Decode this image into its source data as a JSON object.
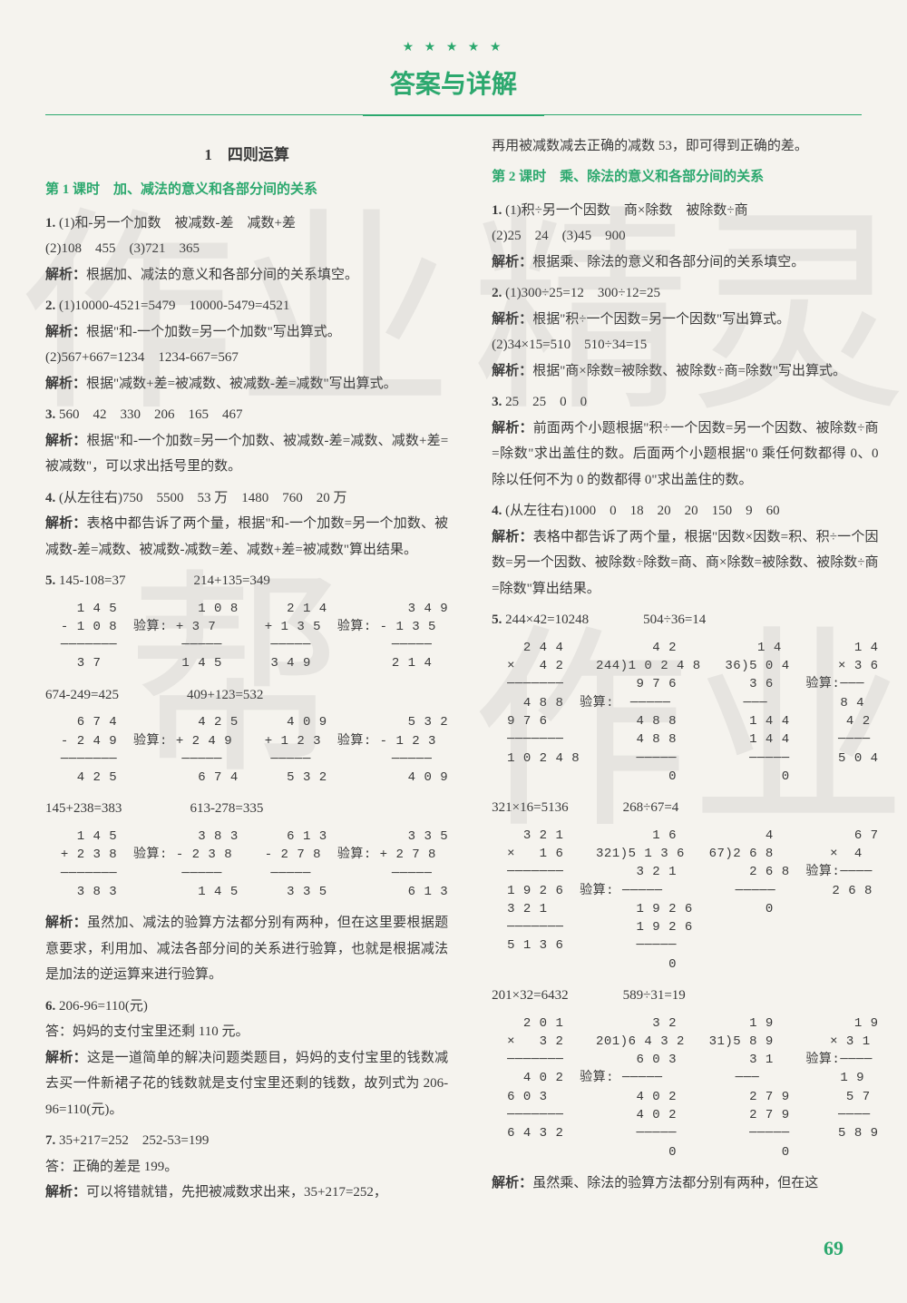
{
  "colors": {
    "accent": "#2ca86e",
    "text": "#3a3a3a",
    "bg": "#f5f3ee"
  },
  "header": {
    "stars": "★ ★ ★ ★ ★",
    "title": "答案与详解"
  },
  "watermark": {
    "c1": "作",
    "c2": "业",
    "c3": "帮",
    "c4": "精",
    "c5": "灵",
    "c6": "作",
    "c7": "业"
  },
  "page_number": "69",
  "left": {
    "section": "1　四则运算",
    "lesson": "第 1 课时　加、减法的意义和各部分间的关系",
    "q1": {
      "num": "1.",
      "a": "(1)和-另一个加数　被减数-差　减数+差",
      "b": "(2)108　455　(3)721　365",
      "ana": "解析：",
      "anat": "根据加、减法的意义和各部分间的关系填空。"
    },
    "q2": {
      "num": "2.",
      "a": "(1)10000-4521=5479　10000-5479=4521",
      "ana1": "解析：",
      "ana1t": "根据\"和-一个加数=另一个加数\"写出算式。",
      "b": "(2)567+667=1234　1234-667=567",
      "ana2": "解析：",
      "ana2t": "根据\"减数+差=被减数、被减数-差=减数\"写出算式。"
    },
    "q3": {
      "num": "3.",
      "a": "560　42　330　206　165　467",
      "ana": "解析：",
      "anat": "根据\"和-一个加数=另一个加数、被减数-差=减数、减数+差=被减数\"，可以求出括号里的数。"
    },
    "q4": {
      "num": "4.",
      "a": "(从左往右)750　5500　53 万　1480　760　20 万",
      "ana": "解析：",
      "anat": "表格中都告诉了两个量，根据\"和-一个加数=另一个加数、被减数-差=减数、被减数-减数=差、减数+差=被减数\"算出结果。"
    },
    "q5": {
      "num": "5.",
      "h1": "145-108=37",
      "h2": "214+135=349",
      "calc1": "   1 4 5          1 0 8      2 1 4          3 4 9\n - 1 0 8  验算: + 3 7      + 1 3 5  验算: - 1 3 5\n ───────        ─────      ─────          ─────\n   3 7          1 4 5      3 4 9          2 1 4",
      "h3": "674-249=425",
      "h4": "409+123=532",
      "calc2": "   6 7 4          4 2 5      4 0 9          5 3 2\n - 2 4 9  验算: + 2 4 9    + 1 2 3  验算: - 1 2 3\n ───────        ─────      ─────          ─────\n   4 2 5          6 7 4      5 3 2          4 0 9",
      "h5": "145+238=383",
      "h6": "613-278=335",
      "calc3": "   1 4 5          3 8 3      6 1 3          3 3 5\n + 2 3 8  验算: - 2 3 8    - 2 7 8  验算: + 2 7 8\n ───────        ─────      ─────          ─────\n   3 8 3          1 4 5      3 3 5          6 1 3",
      "ana": "解析：",
      "anat": "虽然加、减法的验算方法都分别有两种，但在这里要根据题意要求，利用加、减法各部分间的关系进行验算，也就是根据减法是加法的逆运算来进行验算。"
    },
    "q6": {
      "num": "6.",
      "a": "206-96=110(元)",
      "ans": "答：妈妈的支付宝里还剩 110 元。",
      "ana": "解析：",
      "anat": "这是一道简单的解决问题类题目，妈妈的支付宝里的钱数减去买一件新裙子花的钱数就是支付宝里还剩的钱数，故列式为 206-96=110(元)。"
    },
    "q7": {
      "num": "7.",
      "a": "35+217=252　252-53=199",
      "ans": "答：正确的差是 199。",
      "ana": "解析：",
      "anat": "可以将错就错，先把被减数求出来，35+217=252，"
    }
  },
  "right": {
    "cont": "再用被减数减去正确的减数 53，即可得到正确的差。",
    "lesson": "第 2 课时　乘、除法的意义和各部分间的关系",
    "q1": {
      "num": "1.",
      "a": "(1)积÷另一个因数　商×除数　被除数÷商",
      "b": "(2)25　24　(3)45　900",
      "ana": "解析：",
      "anat": "根据乘、除法的意义和各部分间的关系填空。"
    },
    "q2": {
      "num": "2.",
      "a": "(1)300÷25=12　300÷12=25",
      "ana1": "解析：",
      "ana1t": "根据\"积÷一个因数=另一个因数\"写出算式。",
      "b": "(2)34×15=510　510÷34=15",
      "ana2": "解析：",
      "ana2t": "根据\"商×除数=被除数、被除数÷商=除数\"写出算式。"
    },
    "q3": {
      "num": "3.",
      "a": "25　25　0　0",
      "ana": "解析：",
      "anat": "前面两个小题根据\"积÷一个因数=另一个因数、被除数÷商=除数\"求出盖住的数。后面两个小题根据\"0 乘任何数都得 0、0 除以任何不为 0 的数都得 0\"求出盖住的数。"
    },
    "q4": {
      "num": "4.",
      "a": "(从左往右)1000　0　18　20　20　150　9　60",
      "ana": "解析：",
      "anat": "表格中都告诉了两个量，根据\"因数×因数=积、积÷一个因数=另一个因数、被除数÷除数=商、商×除数=被除数、被除数÷商=除数\"算出结果。"
    },
    "q5": {
      "num": "5.",
      "h1": "244×42=10248",
      "h2": "504÷36=14",
      "calc1": "   2 4 4           4 2          1 4         1 4\n ×   4 2    244)1 0 2 4 8   36)5 0 4      × 3 6\n ───────         9 7 6         3 6    验算:───\n   4 8 8  验算:  ─────         ───         8 4\n 9 7 6           4 8 8         1 4 4       4 2\n ───────         4 8 8         1 4 4      ────\n 1 0 2 4 8       ─────         ─────      5 0 4\n                     0             0",
      "h3": "321×16=5136",
      "h4": "268÷67=4",
      "calc2": "   3 2 1           1 6           4          6 7\n ×   1 6    321)5 1 3 6   67)2 6 8       ×  4\n ───────         3 2 1         2 6 8  验算:────\n 1 9 2 6  验算: ─────         ─────       2 6 8\n 3 2 1           1 9 2 6         0\n ───────         1 9 2 6\n 5 1 3 6         ─────\n                     0",
      "h5": "201×32=6432",
      "h6": "589÷31=19",
      "calc3": "   2 0 1           3 2         1 9          1 9\n ×   3 2    201)6 4 3 2   31)5 8 9       × 3 1\n ───────         6 0 3         3 1    验算:────\n   4 0 2  验算: ─────         ───          1 9\n 6 0 3           4 0 2         2 7 9       5 7\n ───────         4 0 2         2 7 9      ────\n 6 4 3 2         ─────         ─────      5 8 9\n                     0             0",
      "ana": "解析：",
      "anat": "虽然乘、除法的验算方法都分别有两种，但在这"
    }
  }
}
